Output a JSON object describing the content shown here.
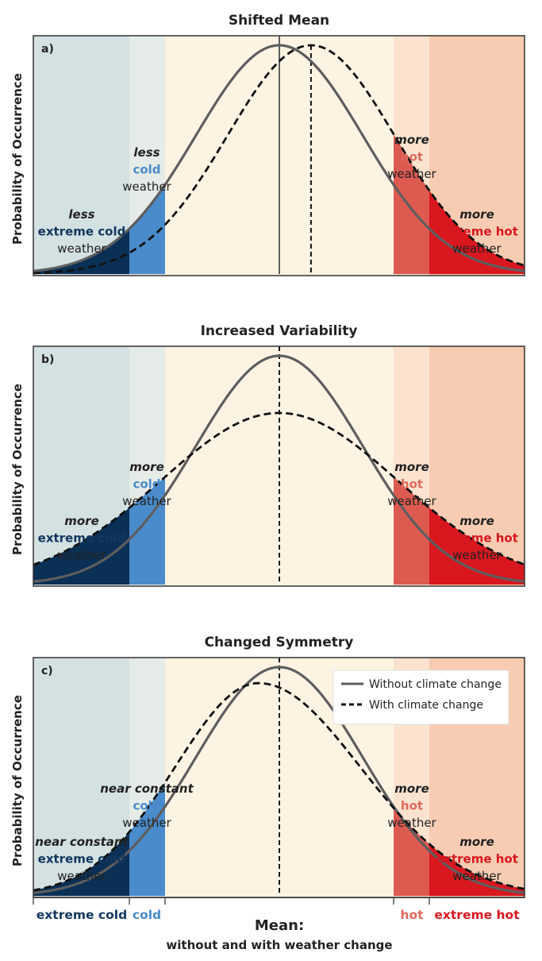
{
  "colors": {
    "extreme_cold_band": "#d3e1e3",
    "cold_band": "#e5ebe6",
    "normal_band": "#fdf3e3",
    "hot_band": "#fbe3d0",
    "extreme_hot_band": "#f7ccb2",
    "extreme_cold_fill": "#0b3056",
    "cold_fill": "#4a8bcb",
    "hot_fill": "#dd5a50",
    "extreme_hot_fill": "#d8171f",
    "extreme_cold_text": "#13375e",
    "cold_text": "#4a8bcb",
    "hot_text": "#e06a5c",
    "extreme_hot_text": "#d8171f",
    "solid_curve": "#5e5e5e",
    "dashed_curve": "#111111"
  },
  "chart_data": [
    {
      "type": "area",
      "title": "Shifted Mean",
      "panel_label": "a)",
      "ylabel": "Probability of Occurrence",
      "series": [
        {
          "name": "Without climate change",
          "style": "solid",
          "mean": 0,
          "sd": 1.0,
          "peak": 1.0
        },
        {
          "name": "With climate change",
          "style": "dashed",
          "mean": 0.38,
          "sd": 1.0,
          "peak": 1.0
        }
      ],
      "annotations": [
        {
          "lines": [
            "less",
            "extreme cold",
            "weather"
          ],
          "category": "extreme_cold"
        },
        {
          "lines": [
            "less",
            "cold",
            "weather"
          ],
          "category": "cold"
        },
        {
          "lines": [
            "more",
            "hot",
            "weather"
          ],
          "category": "hot"
        },
        {
          "lines": [
            "more",
            "extreme hot",
            "weather"
          ],
          "category": "extreme_hot"
        }
      ]
    },
    {
      "type": "area",
      "title": "Increased Variability",
      "panel_label": "b)",
      "ylabel": "Probability of Occurrence",
      "series": [
        {
          "name": "Without climate change",
          "style": "solid",
          "mean": 0,
          "sd": 1.0,
          "peak": 1.0
        },
        {
          "name": "With climate change",
          "style": "dashed",
          "mean": 0,
          "sd": 1.42,
          "peak": 0.75
        }
      ],
      "annotations": [
        {
          "lines": [
            "more",
            "extreme cold",
            "weather"
          ],
          "category": "extreme_cold"
        },
        {
          "lines": [
            "more",
            "cold",
            "weather"
          ],
          "category": "cold"
        },
        {
          "lines": [
            "more",
            "hot",
            "weather"
          ],
          "category": "hot"
        },
        {
          "lines": [
            "more",
            "extreme hot",
            "weather"
          ],
          "category": "extreme_hot"
        }
      ]
    },
    {
      "type": "area",
      "title": "Changed Symmetry",
      "panel_label": "c)",
      "ylabel": "Probability of Occurrence",
      "series": [
        {
          "name": "Without climate change",
          "style": "solid",
          "mean": 0,
          "sd": 1.0,
          "peak": 1.0
        },
        {
          "name": "With climate change",
          "style": "dashed",
          "mean": -0.25,
          "sd_left": 1.0,
          "sd_right": 1.22,
          "peak": 0.93
        }
      ],
      "annotations": [
        {
          "lines": [
            "near constant",
            "extreme cold",
            "weather"
          ],
          "category": "extreme_cold"
        },
        {
          "lines": [
            "near constant",
            "cold",
            "weather"
          ],
          "category": "cold"
        },
        {
          "lines": [
            "more",
            "hot",
            "weather"
          ],
          "category": "hot"
        },
        {
          "lines": [
            "more",
            "extreme hot",
            "weather"
          ],
          "category": "extreme_hot"
        }
      ],
      "legend": {
        "placement": "top-right",
        "items": [
          {
            "label": "Without climate change",
            "style": "solid"
          },
          {
            "label": "With climate change",
            "style": "dashed"
          }
        ]
      }
    }
  ],
  "x_axis": {
    "category_labels": [
      {
        "text": "extreme cold",
        "category": "extreme_cold"
      },
      {
        "text": "cold",
        "category": "cold"
      },
      {
        "text": "hot",
        "category": "hot"
      },
      {
        "text": "extreme hot",
        "category": "extreme_hot"
      }
    ],
    "mean_label": "Mean:",
    "mean_sublabel": "without and with weather change"
  }
}
